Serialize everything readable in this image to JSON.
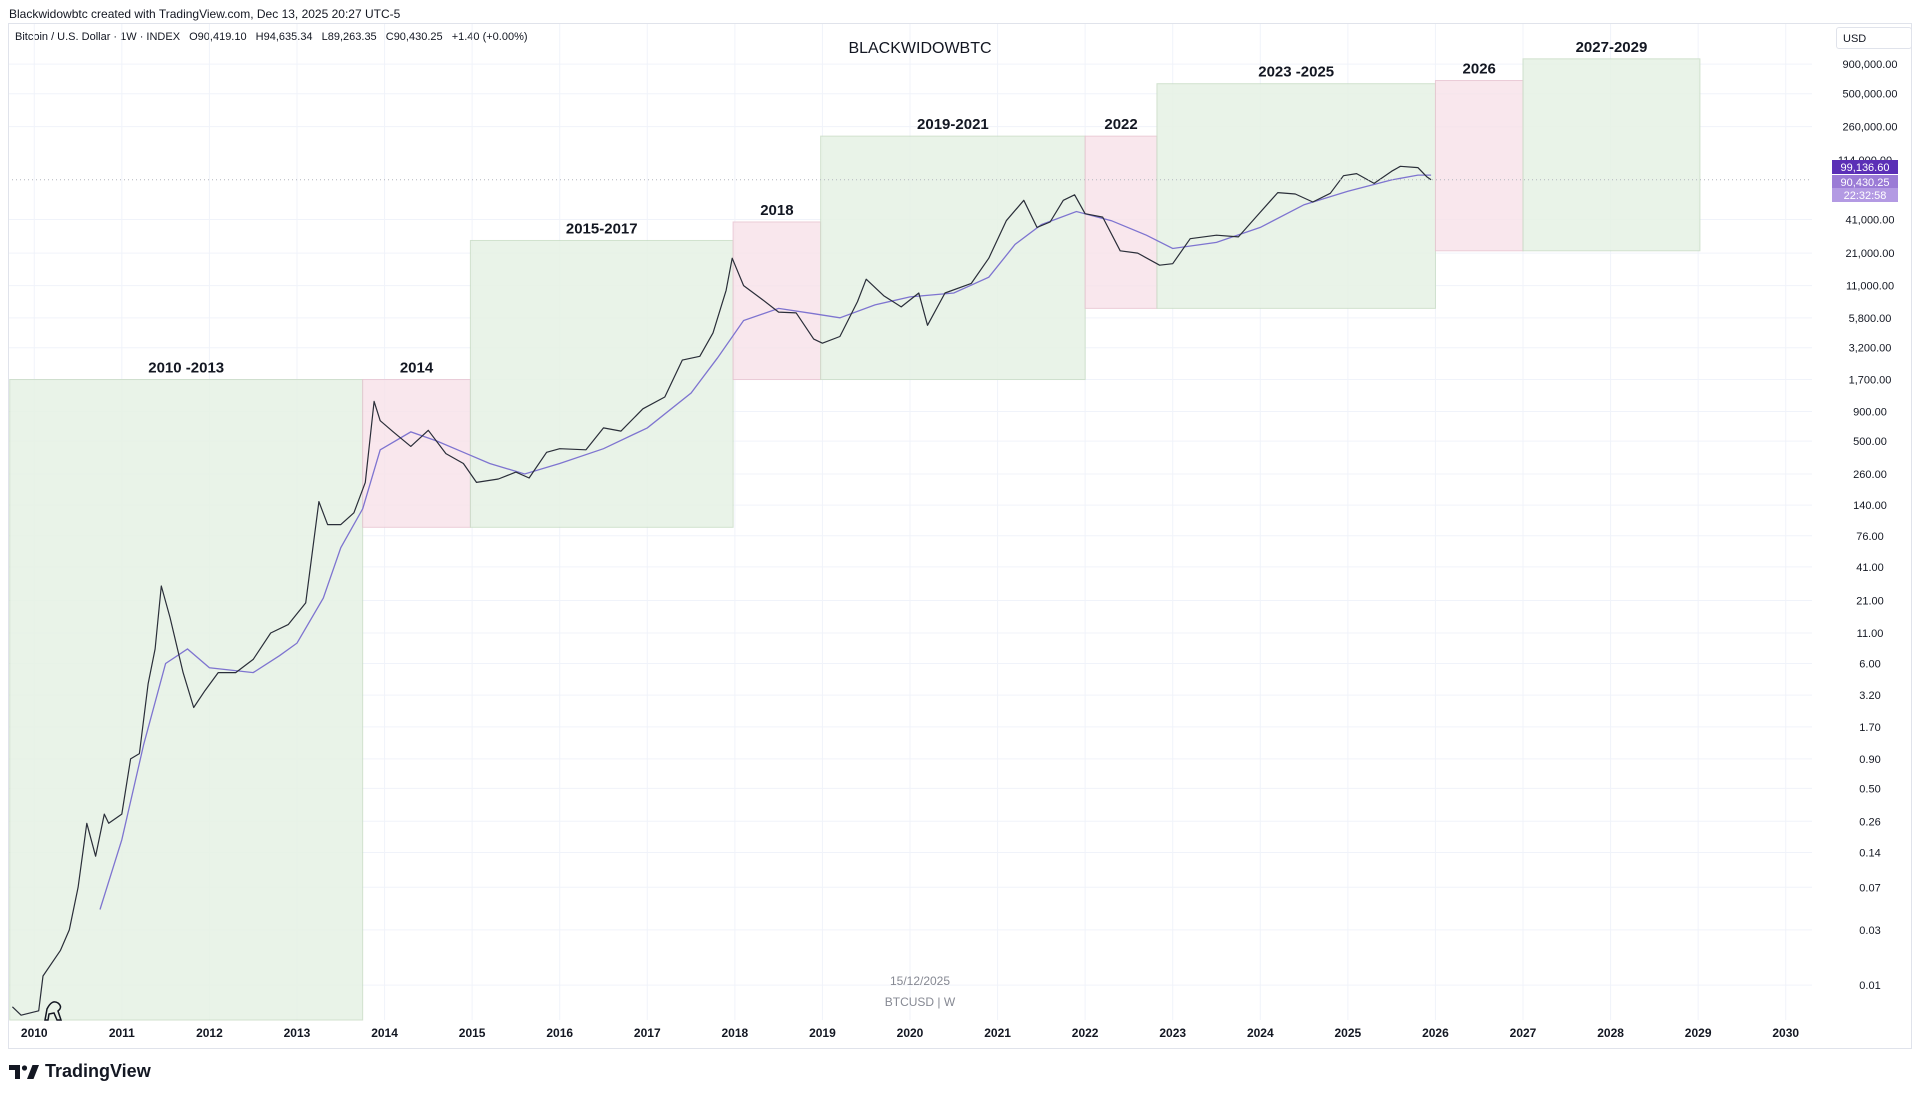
{
  "header": {
    "attribution": "Blackwidowbtc created with TradingView.com, Dec 13, 2025 20:27 UTC-5",
    "symbol_name": "Bitcoin / U.S. Dollar · 1W · INDEX",
    "open": "O90,419.10",
    "high": "H94,635.34",
    "low": "L89,263.35",
    "close": "C90,430.25",
    "change": "+1.40 (+0.00%)",
    "currency": "USD"
  },
  "footer": {
    "brand": "TradingView",
    "brand_icon": "tradingview-logo-icon",
    "corner_icon": "dinosaur-icon"
  },
  "colors": {
    "green_zone": "#e6f2e4",
    "pink_zone": "#f8e3ea",
    "candle": "#2a2e39",
    "ma_line": "#7e74d0",
    "label_ma": "#5b2fb6",
    "label_price": "#9b7bd6",
    "label_countdown": "#b39ae3"
  },
  "chart_data": {
    "type": "line",
    "title": "BLACKWIDOWBTC",
    "scale": "log",
    "ylim": [
      0.005,
      2000000
    ],
    "xlim": [
      2009.7,
      2030.3
    ],
    "x_ticks": [
      "2010",
      "2011",
      "2012",
      "2013",
      "2014",
      "2015",
      "2016",
      "2017",
      "2018",
      "2019",
      "2020",
      "2021",
      "2022",
      "2023",
      "2024",
      "2025",
      "2026",
      "2027",
      "2028",
      "2029",
      "2030"
    ],
    "y_ticks": [
      "900,000.00",
      "500,000.00",
      "260,000.00",
      "41,000.00",
      "21,000.00",
      "11,000.00",
      "5,800.00",
      "3,200.00",
      "1,700.00",
      "900.00",
      "500.00",
      "260.00",
      "140.00",
      "76.00",
      "41.00",
      "21.00",
      "11.00",
      "6.00",
      "3.20",
      "1.70",
      "0.90",
      "0.50",
      "0.26",
      "0.14",
      "0.07",
      "0.03",
      "0.01"
    ],
    "zones": [
      {
        "label": "2010 -2013",
        "x0": 2009.72,
        "x1": 2013.75,
        "y0": 0.005,
        "y1": 1700,
        "kind": "green"
      },
      {
        "label": "2014",
        "x0": 2013.75,
        "x1": 2014.98,
        "y0": 90,
        "y1": 1700,
        "kind": "pink"
      },
      {
        "label": "2015-2017",
        "x0": 2014.98,
        "x1": 2017.98,
        "y0": 90,
        "y1": 27000,
        "kind": "green"
      },
      {
        "label": "2018",
        "x0": 2017.98,
        "x1": 2018.98,
        "y0": 1700,
        "y1": 39000,
        "kind": "pink"
      },
      {
        "label": "2019-2021",
        "x0": 2018.98,
        "x1": 2022.0,
        "y0": 1700,
        "y1": 215000,
        "kind": "green"
      },
      {
        "label": "2022",
        "x0": 2022.0,
        "x1": 2022.82,
        "y0": 7000,
        "y1": 215000,
        "kind": "pink"
      },
      {
        "label": "2023 -2025",
        "x0": 2022.82,
        "x1": 2026.0,
        "y0": 7000,
        "y1": 610000,
        "kind": "green"
      },
      {
        "label": "2026",
        "x0": 2026.0,
        "x1": 2027.0,
        "y0": 22000,
        "y1": 650000,
        "kind": "pink"
      },
      {
        "label": "2027-2029",
        "x0": 2027.0,
        "x1": 2029.02,
        "y0": 22000,
        "y1": 1000000,
        "kind": "green"
      }
    ],
    "series": [
      {
        "kind": "price",
        "points": [
          [
            2009.75,
            0.0065
          ],
          [
            2009.85,
            0.0055
          ],
          [
            2010.05,
            0.006
          ],
          [
            2010.1,
            0.012
          ],
          [
            2010.3,
            0.02
          ],
          [
            2010.4,
            0.03
          ],
          [
            2010.5,
            0.07
          ],
          [
            2010.6,
            0.25
          ],
          [
            2010.7,
            0.13
          ],
          [
            2010.8,
            0.3
          ],
          [
            2010.85,
            0.25
          ],
          [
            2011.0,
            0.3
          ],
          [
            2011.1,
            0.9
          ],
          [
            2011.2,
            1.0
          ],
          [
            2011.3,
            4.0
          ],
          [
            2011.38,
            8.0
          ],
          [
            2011.45,
            28.0
          ],
          [
            2011.55,
            15.0
          ],
          [
            2011.7,
            5.0
          ],
          [
            2011.82,
            2.5
          ],
          [
            2011.95,
            3.5
          ],
          [
            2012.1,
            5.0
          ],
          [
            2012.3,
            5.0
          ],
          [
            2012.5,
            6.5
          ],
          [
            2012.7,
            11.0
          ],
          [
            2012.9,
            13.0
          ],
          [
            2013.1,
            20.0
          ],
          [
            2013.25,
            150.0
          ],
          [
            2013.35,
            95.0
          ],
          [
            2013.5,
            95.0
          ],
          [
            2013.65,
            120.0
          ],
          [
            2013.78,
            220.0
          ],
          [
            2013.88,
            1100.0
          ],
          [
            2013.95,
            750.0
          ],
          [
            2014.1,
            600.0
          ],
          [
            2014.3,
            450.0
          ],
          [
            2014.5,
            620.0
          ],
          [
            2014.7,
            390.0
          ],
          [
            2014.9,
            320.0
          ],
          [
            2015.05,
            220.0
          ],
          [
            2015.3,
            235.0
          ],
          [
            2015.5,
            270.0
          ],
          [
            2015.65,
            240.0
          ],
          [
            2015.85,
            400.0
          ],
          [
            2016.0,
            430.0
          ],
          [
            2016.3,
            420.0
          ],
          [
            2016.5,
            650.0
          ],
          [
            2016.7,
            610.0
          ],
          [
            2016.95,
            950.0
          ],
          [
            2017.2,
            1200.0
          ],
          [
            2017.4,
            2500.0
          ],
          [
            2017.6,
            2700.0
          ],
          [
            2017.75,
            4300.0
          ],
          [
            2017.9,
            10000.0
          ],
          [
            2017.97,
            19000.0
          ],
          [
            2018.1,
            11000.0
          ],
          [
            2018.3,
            8500.0
          ],
          [
            2018.5,
            6500.0
          ],
          [
            2018.7,
            6400.0
          ],
          [
            2018.9,
            3800.0
          ],
          [
            2019.0,
            3500.0
          ],
          [
            2019.2,
            4000.0
          ],
          [
            2019.4,
            8000.0
          ],
          [
            2019.5,
            12500.0
          ],
          [
            2019.7,
            9000.0
          ],
          [
            2019.9,
            7200.0
          ],
          [
            2020.1,
            9500.0
          ],
          [
            2020.2,
            5000.0
          ],
          [
            2020.4,
            9500.0
          ],
          [
            2020.7,
            11500.0
          ],
          [
            2020.9,
            19000.0
          ],
          [
            2021.1,
            40000.0
          ],
          [
            2021.3,
            60000.0
          ],
          [
            2021.45,
            35000.0
          ],
          [
            2021.6,
            39000.0
          ],
          [
            2021.75,
            60000.0
          ],
          [
            2021.88,
            67000.0
          ],
          [
            2022.0,
            46000.0
          ],
          [
            2022.2,
            43000.0
          ],
          [
            2022.4,
            22000.0
          ],
          [
            2022.6,
            21000.0
          ],
          [
            2022.85,
            16500.0
          ],
          [
            2023.0,
            17000.0
          ],
          [
            2023.2,
            28000.0
          ],
          [
            2023.5,
            30000.0
          ],
          [
            2023.75,
            29000.0
          ],
          [
            2023.95,
            43000.0
          ],
          [
            2024.2,
            70000.0
          ],
          [
            2024.4,
            68000.0
          ],
          [
            2024.6,
            58000.0
          ],
          [
            2024.8,
            69000.0
          ],
          [
            2024.95,
            98000.0
          ],
          [
            2025.1,
            102000.0
          ],
          [
            2025.3,
            84000.0
          ],
          [
            2025.5,
            107000.0
          ],
          [
            2025.6,
            118000.0
          ],
          [
            2025.8,
            115000.0
          ],
          [
            2025.9,
            96000.0
          ],
          [
            2025.95,
            90430.25
          ]
        ]
      },
      {
        "kind": "ma",
        "points": [
          [
            2010.75,
            0.045
          ],
          [
            2011.0,
            0.18
          ],
          [
            2011.25,
            1.2
          ],
          [
            2011.5,
            6.0
          ],
          [
            2011.75,
            8.0
          ],
          [
            2012.0,
            5.5
          ],
          [
            2012.5,
            5.0
          ],
          [
            2012.8,
            7.0
          ],
          [
            2013.0,
            9.0
          ],
          [
            2013.3,
            22.0
          ],
          [
            2013.5,
            60.0
          ],
          [
            2013.75,
            130.0
          ],
          [
            2013.95,
            420.0
          ],
          [
            2014.3,
            600.0
          ],
          [
            2014.6,
            500.0
          ],
          [
            2014.9,
            400.0
          ],
          [
            2015.2,
            320.0
          ],
          [
            2015.6,
            260.0
          ],
          [
            2016.0,
            320.0
          ],
          [
            2016.5,
            430.0
          ],
          [
            2017.0,
            650.0
          ],
          [
            2017.5,
            1300.0
          ],
          [
            2017.8,
            2600.0
          ],
          [
            2018.1,
            5500.0
          ],
          [
            2018.5,
            7000.0
          ],
          [
            2018.9,
            6300.0
          ],
          [
            2019.2,
            5800.0
          ],
          [
            2019.6,
            7500.0
          ],
          [
            2020.0,
            8800.0
          ],
          [
            2020.5,
            9500.0
          ],
          [
            2020.9,
            13000.0
          ],
          [
            2021.2,
            25000.0
          ],
          [
            2021.5,
            37000.0
          ],
          [
            2021.9,
            48000.0
          ],
          [
            2022.3,
            40000.0
          ],
          [
            2022.7,
            30000.0
          ],
          [
            2023.0,
            23000.0
          ],
          [
            2023.5,
            26000.0
          ],
          [
            2024.0,
            35000.0
          ],
          [
            2024.5,
            55000.0
          ],
          [
            2025.0,
            72000.0
          ],
          [
            2025.5,
            90000.0
          ],
          [
            2025.8,
            99000.0
          ],
          [
            2025.95,
            99136.6
          ]
        ]
      }
    ],
    "price_labels": {
      "hidden_above": "114,000.00",
      "ma_value": "99,136.60",
      "last_price": "90,430.25",
      "countdown": "22:32:58"
    },
    "bottom_text": {
      "date": "15/12/2025",
      "symbol": "BTCUSD | W"
    }
  }
}
